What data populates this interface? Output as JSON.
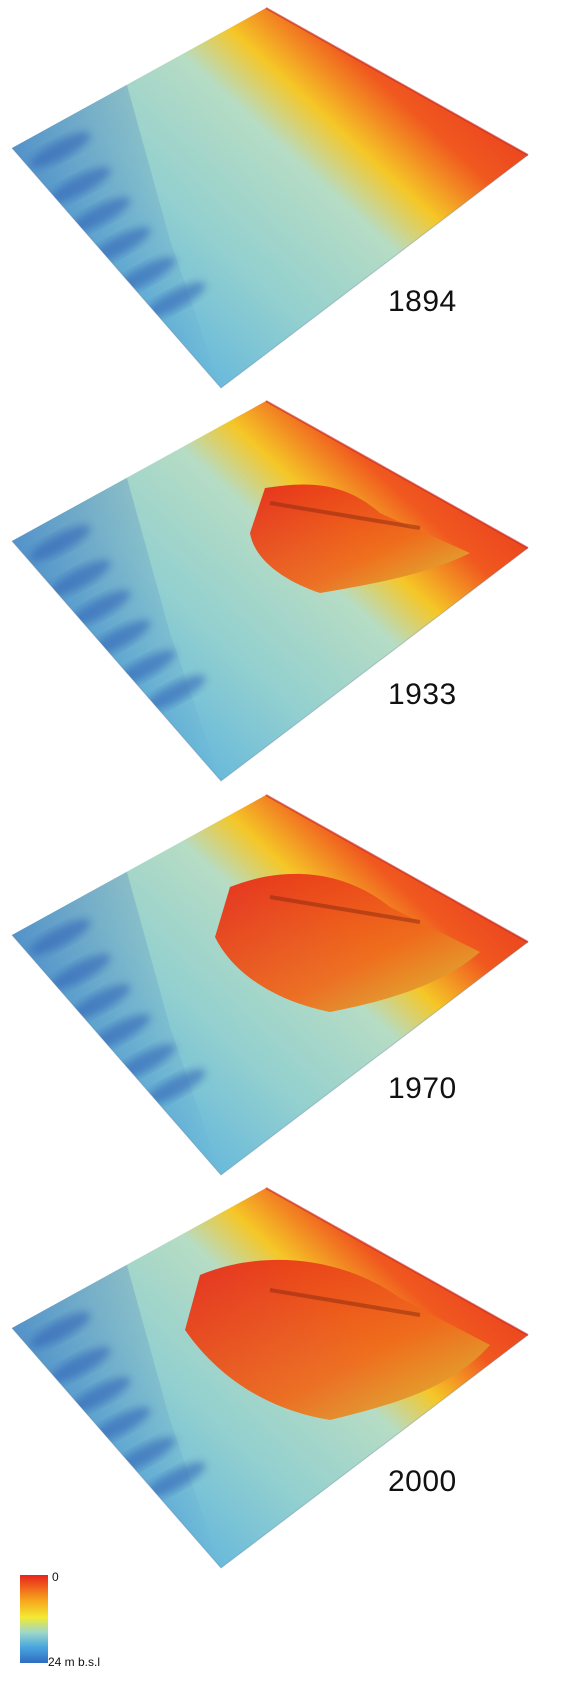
{
  "panels": [
    {
      "year": "1894",
      "structure": "none"
    },
    {
      "year": "1933",
      "structure": "early"
    },
    {
      "year": "1970",
      "structure": "grown"
    },
    {
      "year": "2000",
      "structure": "large"
    }
  ],
  "legend": {
    "top_label": "0",
    "bottom_label": "24 m b.s.l",
    "colors": [
      "#e8231d",
      "#f6a21c",
      "#f3ea31",
      "#9ed8c8",
      "#49a6df",
      "#2f6cc0"
    ]
  }
}
